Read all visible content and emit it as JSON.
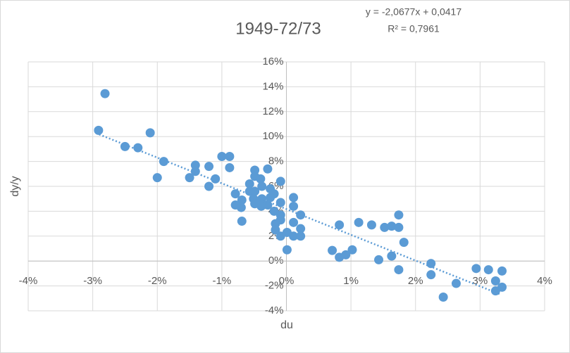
{
  "chart_data": {
    "type": "scatter",
    "title": "1949-72/73",
    "xlabel": "du",
    "ylabel": "dy/y",
    "annotations": [
      "y = -2,0677x + 0,0417",
      "R² = 0,7961"
    ],
    "color": "#5b9bd5",
    "x": [
      -2.81,
      -2.91,
      -2.11,
      -2.5,
      -2.3,
      -1.9,
      -2.0,
      -1.41,
      -1.41,
      -1.5,
      -1.2,
      -1.1,
      -1.2,
      -1.0,
      -0.88,
      -0.88,
      -0.29,
      -0.49,
      -0.49,
      -0.4,
      -0.09,
      -0.57,
      -0.57,
      -0.49,
      -0.38,
      -0.25,
      -0.19,
      -0.79,
      -0.69,
      -0.79,
      -0.7,
      -0.51,
      -0.38,
      -0.29,
      -0.39,
      -0.09,
      0.11,
      0.11,
      -0.69,
      -0.09,
      -0.09,
      -0.17,
      0.22,
      0.11,
      -0.17,
      -0.09,
      0.01,
      0.11,
      0.22,
      0.22,
      0.01,
      0.71,
      0.82,
      0.92,
      1.02,
      0.82,
      1.12,
      1.32,
      1.52,
      1.63,
      1.74,
      1.74,
      1.82,
      1.43,
      1.63,
      1.74,
      2.24,
      2.24,
      2.63,
      2.43,
      2.94,
      3.13,
      3.34,
      3.24,
      3.34,
      3.24,
      -0.25,
      -0.49,
      -0.19
    ],
    "y": [
      13.45,
      10.5,
      10.3,
      9.2,
      9.1,
      8.0,
      6.7,
      7.7,
      7.2,
      6.7,
      7.6,
      6.6,
      6.0,
      8.4,
      8.4,
      7.5,
      7.4,
      7.3,
      6.8,
      6.6,
      6.4,
      6.2,
      5.6,
      5.6,
      6.0,
      5.8,
      5.4,
      5.4,
      4.9,
      4.5,
      4.3,
      5.0,
      5.0,
      4.5,
      4.4,
      4.7,
      5.1,
      4.4,
      3.2,
      3.7,
      3.3,
      3.0,
      3.7,
      3.1,
      2.5,
      2.0,
      2.3,
      2.0,
      2.6,
      2.0,
      0.9,
      0.85,
      0.3,
      0.5,
      0.9,
      2.9,
      3.1,
      2.9,
      2.7,
      2.8,
      2.7,
      3.7,
      1.5,
      0.1,
      0.4,
      -0.7,
      -0.2,
      -1.1,
      -1.8,
      -2.9,
      -0.6,
      -0.7,
      -0.8,
      -1.6,
      -2.1,
      -2.4,
      5.1,
      4.6,
      4.0
    ],
    "trendline": {
      "x": [
        -2.9,
        3.3
      ],
      "y": [
        10.17,
        -2.65
      ],
      "color": "#5b9bd5",
      "style": "dotted"
    },
    "xlim": [
      -4,
      4
    ],
    "ylim": [
      -4,
      16
    ],
    "xticks": [
      {
        "value": -4,
        "label": "-4%"
      },
      {
        "value": -3,
        "label": "-3%"
      },
      {
        "value": -2,
        "label": "-2%"
      },
      {
        "value": -1,
        "label": "-1%"
      },
      {
        "value": 0,
        "label": "0%"
      },
      {
        "value": 1,
        "label": "1%"
      },
      {
        "value": 2,
        "label": "2%"
      },
      {
        "value": 3,
        "label": "3%"
      },
      {
        "value": 4,
        "label": "4%"
      }
    ],
    "yticks": [
      {
        "value": -4,
        "label": "-4%"
      },
      {
        "value": -2,
        "label": "-2%"
      },
      {
        "value": 0,
        "label": "0%"
      },
      {
        "value": 2,
        "label": "2%"
      },
      {
        "value": 4,
        "label": "4%"
      },
      {
        "value": 6,
        "label": "6%"
      },
      {
        "value": 8,
        "label": "8%"
      },
      {
        "value": 10,
        "label": "10%"
      },
      {
        "value": 12,
        "label": "12%"
      },
      {
        "value": 14,
        "label": "14%"
      },
      {
        "value": 16,
        "label": "16%"
      }
    ],
    "grid": true
  }
}
